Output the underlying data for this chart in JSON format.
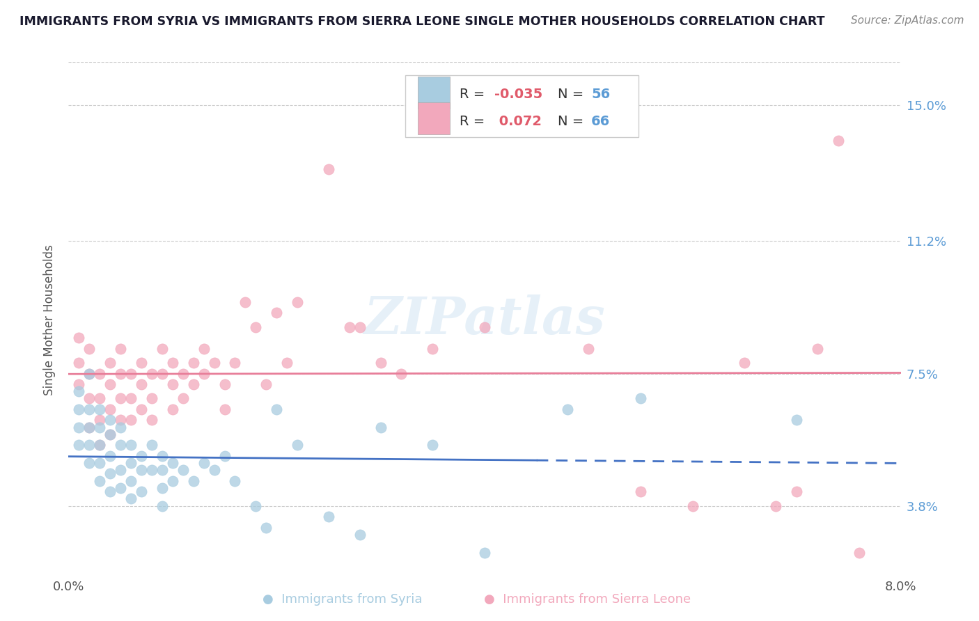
{
  "title": "IMMIGRANTS FROM SYRIA VS IMMIGRANTS FROM SIERRA LEONE SINGLE MOTHER HOUSEHOLDS CORRELATION CHART",
  "source": "Source: ZipAtlas.com",
  "xlabel_syria": "Immigrants from Syria",
  "xlabel_sierraleone": "Immigrants from Sierra Leone",
  "ylabel": "Single Mother Households",
  "x_min": 0.0,
  "x_max": 0.08,
  "y_min": 0.018,
  "y_max": 0.162,
  "y_ticks": [
    0.038,
    0.075,
    0.112,
    0.15
  ],
  "y_tick_labels": [
    "3.8%",
    "7.5%",
    "11.2%",
    "15.0%"
  ],
  "r_syria": -0.035,
  "n_syria": 56,
  "r_sierraleone": 0.072,
  "n_sierraleone": 66,
  "color_syria": "#a8cce0",
  "color_sierraleone": "#f2a8bc",
  "color_syria_line": "#4472c4",
  "color_sierraleone_line": "#e87f9a",
  "watermark": "ZIPatlas",
  "syria_x": [
    0.001,
    0.001,
    0.001,
    0.001,
    0.002,
    0.002,
    0.002,
    0.002,
    0.002,
    0.003,
    0.003,
    0.003,
    0.003,
    0.003,
    0.004,
    0.004,
    0.004,
    0.004,
    0.004,
    0.005,
    0.005,
    0.005,
    0.005,
    0.006,
    0.006,
    0.006,
    0.006,
    0.007,
    0.007,
    0.007,
    0.008,
    0.008,
    0.009,
    0.009,
    0.009,
    0.009,
    0.01,
    0.01,
    0.011,
    0.012,
    0.013,
    0.014,
    0.015,
    0.016,
    0.018,
    0.019,
    0.02,
    0.022,
    0.025,
    0.028,
    0.03,
    0.035,
    0.04,
    0.048,
    0.055,
    0.07
  ],
  "syria_y": [
    0.07,
    0.065,
    0.06,
    0.055,
    0.075,
    0.065,
    0.06,
    0.055,
    0.05,
    0.065,
    0.06,
    0.055,
    0.05,
    0.045,
    0.062,
    0.058,
    0.052,
    0.047,
    0.042,
    0.06,
    0.055,
    0.048,
    0.043,
    0.055,
    0.05,
    0.045,
    0.04,
    0.052,
    0.048,
    0.042,
    0.055,
    0.048,
    0.052,
    0.048,
    0.043,
    0.038,
    0.05,
    0.045,
    0.048,
    0.045,
    0.05,
    0.048,
    0.052,
    0.045,
    0.038,
    0.032,
    0.065,
    0.055,
    0.035,
    0.03,
    0.06,
    0.055,
    0.025,
    0.065,
    0.068,
    0.062
  ],
  "sierraleone_x": [
    0.001,
    0.001,
    0.001,
    0.002,
    0.002,
    0.002,
    0.002,
    0.003,
    0.003,
    0.003,
    0.003,
    0.004,
    0.004,
    0.004,
    0.004,
    0.005,
    0.005,
    0.005,
    0.005,
    0.006,
    0.006,
    0.006,
    0.007,
    0.007,
    0.007,
    0.008,
    0.008,
    0.008,
    0.009,
    0.009,
    0.01,
    0.01,
    0.01,
    0.011,
    0.011,
    0.012,
    0.012,
    0.013,
    0.013,
    0.014,
    0.015,
    0.015,
    0.016,
    0.017,
    0.018,
    0.019,
    0.02,
    0.021,
    0.022,
    0.025,
    0.027,
    0.028,
    0.03,
    0.032,
    0.035,
    0.04,
    0.045,
    0.05,
    0.055,
    0.06,
    0.065,
    0.068,
    0.07,
    0.072,
    0.074,
    0.076
  ],
  "sierraleone_y": [
    0.085,
    0.078,
    0.072,
    0.082,
    0.075,
    0.068,
    0.06,
    0.075,
    0.068,
    0.062,
    0.055,
    0.078,
    0.072,
    0.065,
    0.058,
    0.082,
    0.075,
    0.068,
    0.062,
    0.075,
    0.068,
    0.062,
    0.078,
    0.072,
    0.065,
    0.075,
    0.068,
    0.062,
    0.082,
    0.075,
    0.078,
    0.072,
    0.065,
    0.075,
    0.068,
    0.078,
    0.072,
    0.082,
    0.075,
    0.078,
    0.072,
    0.065,
    0.078,
    0.095,
    0.088,
    0.072,
    0.092,
    0.078,
    0.095,
    0.132,
    0.088,
    0.088,
    0.078,
    0.075,
    0.082,
    0.088,
    0.148,
    0.082,
    0.042,
    0.038,
    0.078,
    0.038,
    0.042,
    0.082,
    0.14,
    0.025
  ]
}
